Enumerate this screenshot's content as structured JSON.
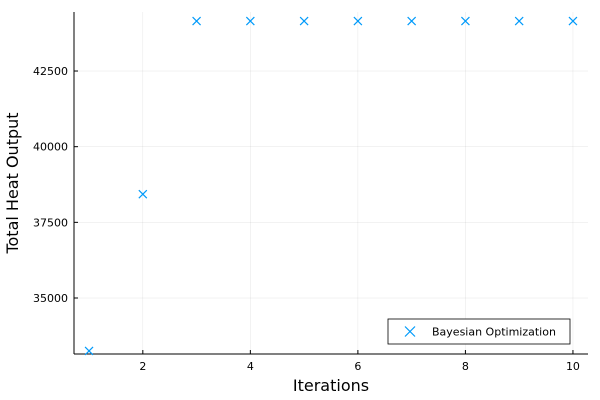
{
  "chart_data": {
    "type": "scatter",
    "title": "",
    "xlabel": "Iterations",
    "ylabel": "Total Heat Output",
    "xlim": [
      0.72,
      10.28
    ],
    "ylim": [
      33150,
      44450
    ],
    "x_ticks": [
      2,
      4,
      6,
      8,
      10
    ],
    "y_ticks": [
      35000,
      37500,
      40000,
      42500
    ],
    "x_tick_labels": [
      "2",
      "4",
      "6",
      "8",
      "10"
    ],
    "y_tick_labels": [
      "35000",
      "37500",
      "40000",
      "42500"
    ],
    "grid": true,
    "legend_position": "bottom-right",
    "series": [
      {
        "name": "Bayesian Optimization",
        "marker": "x",
        "color": "#009AFA",
        "x": [
          1,
          2,
          3,
          4,
          5,
          6,
          7,
          8,
          9,
          10
        ],
        "y": [
          33250,
          38430,
          44150,
          44150,
          44150,
          44150,
          44150,
          44150,
          44150,
          44150
        ]
      }
    ]
  }
}
